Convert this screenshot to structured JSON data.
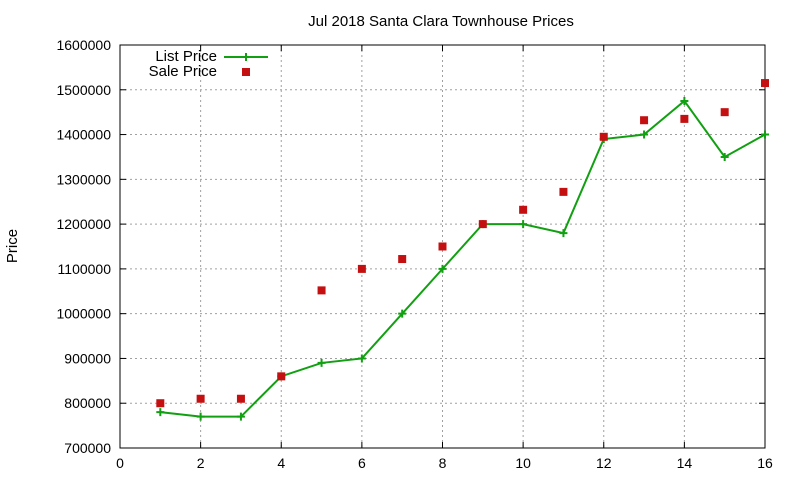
{
  "chart_data": {
    "type": "line",
    "title": "Jul 2018 Santa Clara Townhouse Prices",
    "xlabel": "",
    "ylabel": "Price",
    "xlim": [
      0,
      16
    ],
    "ylim": [
      700000,
      1600000
    ],
    "xticks": [
      0,
      2,
      4,
      6,
      8,
      10,
      12,
      14,
      16
    ],
    "yticks": [
      700000,
      800000,
      900000,
      1000000,
      1100000,
      1200000,
      1300000,
      1400000,
      1500000,
      1600000
    ],
    "grid": true,
    "legend_position": "top-left",
    "series": [
      {
        "name": "List Price",
        "style": "line-with-plus-markers",
        "color": "#11a011",
        "x": [
          1,
          2,
          3,
          4,
          5,
          6,
          7,
          8,
          9,
          10,
          11,
          12,
          13,
          14,
          15,
          16
        ],
        "values": [
          780000,
          770000,
          770000,
          860000,
          890000,
          900000,
          1000000,
          1100000,
          1200000,
          1200000,
          1180000,
          1390000,
          1400000,
          1475000,
          1350000,
          1400000
        ]
      },
      {
        "name": "Sale Price",
        "style": "square-points",
        "color": "#c41010",
        "x": [
          1,
          2,
          3,
          4,
          5,
          6,
          7,
          8,
          9,
          10,
          11,
          12,
          13,
          14,
          15,
          16
        ],
        "values": [
          800000,
          810000,
          810000,
          860000,
          1052000,
          1100000,
          1122000,
          1150000,
          1200000,
          1232000,
          1272000,
          1395000,
          1432000,
          1435000,
          1450000,
          1515000
        ]
      }
    ]
  }
}
